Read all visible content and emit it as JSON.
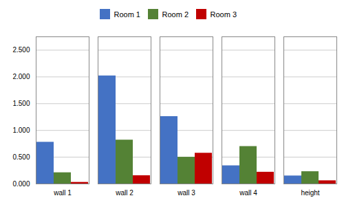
{
  "chart_data": {
    "type": "bar",
    "categories": [
      "wall 1",
      "wall 2",
      "wall 3",
      "wall 4",
      "height"
    ],
    "series": [
      {
        "name": "Room 1",
        "color": "#4472C4",
        "values": [
          0.78,
          2.02,
          1.26,
          0.34,
          0.15
        ]
      },
      {
        "name": "Room 2",
        "color": "#548235",
        "values": [
          0.21,
          0.82,
          0.5,
          0.7,
          0.23
        ]
      },
      {
        "name": "Room 3",
        "color": "#C00000",
        "values": [
          0.03,
          0.155,
          0.575,
          0.22,
          0.06
        ]
      }
    ],
    "ylim": [
      0,
      2.75
    ],
    "yticks": [
      {
        "value": 0.0,
        "label": "0.000"
      },
      {
        "value": 0.5,
        "label": "0.500"
      },
      {
        "value": 1.0,
        "label": "1.000"
      },
      {
        "value": 1.5,
        "label": "1.500"
      },
      {
        "value": 2.0,
        "label": "2.000"
      },
      {
        "value": 2.5,
        "label": "2.500"
      }
    ],
    "grid": true,
    "legend": "top"
  }
}
